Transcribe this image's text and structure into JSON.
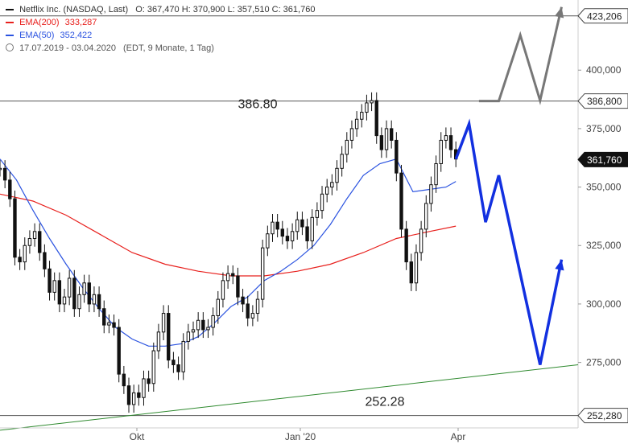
{
  "header": {
    "symbol_line": "Netflix Inc. (NASDAQ, Last)",
    "ohlc": "O: 367,470  H: 370,900  L: 357,510  C: 361,760",
    "ema200_label": "EMA(200)",
    "ema200_value": "333,287",
    "ema50_label": "EMA(50)",
    "ema50_value": "352,422",
    "period": "17.07.2019 - 03.04.2020",
    "period_meta": "(EDT, 9 Monate, 1 Tag)"
  },
  "colors": {
    "ema200": "#e8201d",
    "ema50": "#2b53e0",
    "candle": "#111111",
    "projection_up": "#777777",
    "projection_down": "#1230e0",
    "trendline": "#2f8a2f",
    "level": "#555555"
  },
  "chart_data": {
    "type": "line",
    "ylim": [
      247,
      430
    ],
    "yticks": [
      {
        "value": 275,
        "label": "275,000"
      },
      {
        "value": 300,
        "label": "300,000"
      },
      {
        "value": 325,
        "label": "325,000"
      },
      {
        "value": 350,
        "label": "350,000"
      },
      {
        "value": 375,
        "label": "375,000"
      },
      {
        "value": 400,
        "label": "400,000"
      }
    ],
    "xticks": [
      "Okt",
      "Jan '20",
      "Apr"
    ],
    "price_tags": [
      {
        "value": 423.206,
        "label": "423,206",
        "style": "plain"
      },
      {
        "value": 386.8,
        "label": "386,800",
        "style": "plain"
      },
      {
        "value": 361.76,
        "label": "361,760",
        "style": "dark"
      },
      {
        "value": 252.28,
        "label": "252,280",
        "style": "plain"
      }
    ],
    "levels": [
      {
        "value": 423.206
      },
      {
        "value": 386.8,
        "text": "386.80"
      },
      {
        "value": 252.28,
        "text": "252.28"
      }
    ],
    "close_series": [
      [
        0,
        358
      ],
      [
        3,
        353
      ],
      [
        6,
        345
      ],
      [
        9,
        320
      ],
      [
        12,
        318
      ],
      [
        15,
        325
      ],
      [
        18,
        328
      ],
      [
        21,
        331
      ],
      [
        24,
        322
      ],
      [
        27,
        315
      ],
      [
        30,
        305
      ],
      [
        33,
        310
      ],
      [
        36,
        300
      ],
      [
        39,
        303
      ],
      [
        42,
        311
      ],
      [
        45,
        298
      ],
      [
        48,
        304
      ],
      [
        51,
        309
      ],
      [
        54,
        300
      ],
      [
        57,
        304
      ],
      [
        60,
        298
      ],
      [
        63,
        291
      ],
      [
        66,
        292
      ],
      [
        69,
        290
      ],
      [
        72,
        270
      ],
      [
        75,
        265
      ],
      [
        78,
        257
      ],
      [
        81,
        262
      ],
      [
        84,
        260
      ],
      [
        87,
        268
      ],
      [
        90,
        266
      ],
      [
        93,
        280
      ],
      [
        96,
        288
      ],
      [
        99,
        296
      ],
      [
        102,
        276
      ],
      [
        105,
        274
      ],
      [
        108,
        271
      ],
      [
        111,
        284
      ],
      [
        114,
        288
      ],
      [
        117,
        289
      ],
      [
        120,
        293
      ],
      [
        123,
        289
      ],
      [
        126,
        290
      ],
      [
        129,
        295
      ],
      [
        132,
        302
      ],
      [
        135,
        310
      ],
      [
        138,
        313
      ],
      [
        141,
        312
      ],
      [
        144,
        303
      ],
      [
        147,
        300
      ],
      [
        150,
        294
      ],
      [
        153,
        296
      ],
      [
        156,
        302
      ],
      [
        159,
        324
      ],
      [
        162,
        330
      ],
      [
        165,
        335
      ],
      [
        168,
        332
      ],
      [
        171,
        329
      ],
      [
        174,
        327
      ],
      [
        177,
        331
      ],
      [
        180,
        336
      ],
      [
        183,
        333
      ],
      [
        186,
        327
      ],
      [
        189,
        337
      ],
      [
        192,
        340
      ],
      [
        195,
        347
      ],
      [
        198,
        350
      ],
      [
        201,
        352
      ],
      [
        204,
        358
      ],
      [
        207,
        364
      ],
      [
        210,
        370
      ],
      [
        213,
        375
      ],
      [
        216,
        379
      ],
      [
        219,
        382
      ],
      [
        222,
        386
      ],
      [
        225,
        387
      ],
      [
        228,
        372
      ],
      [
        231,
        366
      ],
      [
        234,
        375
      ],
      [
        237,
        370
      ],
      [
        240,
        356
      ],
      [
        243,
        332
      ],
      [
        246,
        318
      ],
      [
        249,
        309
      ],
      [
        252,
        322
      ],
      [
        255,
        332
      ],
      [
        258,
        343
      ],
      [
        261,
        351
      ],
      [
        264,
        360
      ],
      [
        267,
        370
      ],
      [
        270,
        372
      ],
      [
        273,
        366
      ],
      [
        276,
        362
      ]
    ],
    "ema200_series": [
      [
        0,
        347
      ],
      [
        20,
        344
      ],
      [
        40,
        338
      ],
      [
        60,
        330
      ],
      [
        80,
        322
      ],
      [
        100,
        317
      ],
      [
        120,
        314
      ],
      [
        140,
        312
      ],
      [
        160,
        312
      ],
      [
        180,
        314
      ],
      [
        200,
        317
      ],
      [
        220,
        322
      ],
      [
        240,
        328
      ],
      [
        260,
        331
      ],
      [
        276,
        333.3
      ]
    ],
    "ema50_series": [
      [
        0,
        362
      ],
      [
        10,
        353
      ],
      [
        20,
        340
      ],
      [
        30,
        328
      ],
      [
        40,
        317
      ],
      [
        50,
        307
      ],
      [
        60,
        298
      ],
      [
        70,
        290
      ],
      [
        80,
        285
      ],
      [
        90,
        282
      ],
      [
        100,
        282
      ],
      [
        110,
        283
      ],
      [
        120,
        286
      ],
      [
        130,
        292
      ],
      [
        140,
        299
      ],
      [
        150,
        303
      ],
      [
        160,
        310
      ],
      [
        170,
        314
      ],
      [
        180,
        319
      ],
      [
        190,
        325
      ],
      [
        200,
        334
      ],
      [
        210,
        345
      ],
      [
        220,
        355
      ],
      [
        230,
        360
      ],
      [
        240,
        362
      ],
      [
        250,
        348
      ],
      [
        260,
        349
      ],
      [
        270,
        350
      ],
      [
        276,
        352.4
      ]
    ],
    "projection_up": [
      [
        290,
        386.8
      ],
      [
        302,
        386.8
      ],
      [
        315,
        415
      ],
      [
        327,
        387
      ],
      [
        340,
        427
      ]
    ],
    "projection_down": [
      [
        276,
        362
      ],
      [
        284,
        377
      ],
      [
        294,
        335
      ],
      [
        302,
        355
      ],
      [
        327,
        274
      ],
      [
        340,
        319
      ]
    ],
    "trendline": [
      [
        0,
        246
      ],
      [
        350,
        274
      ]
    ],
    "x_range": [
      0,
      350
    ]
  }
}
